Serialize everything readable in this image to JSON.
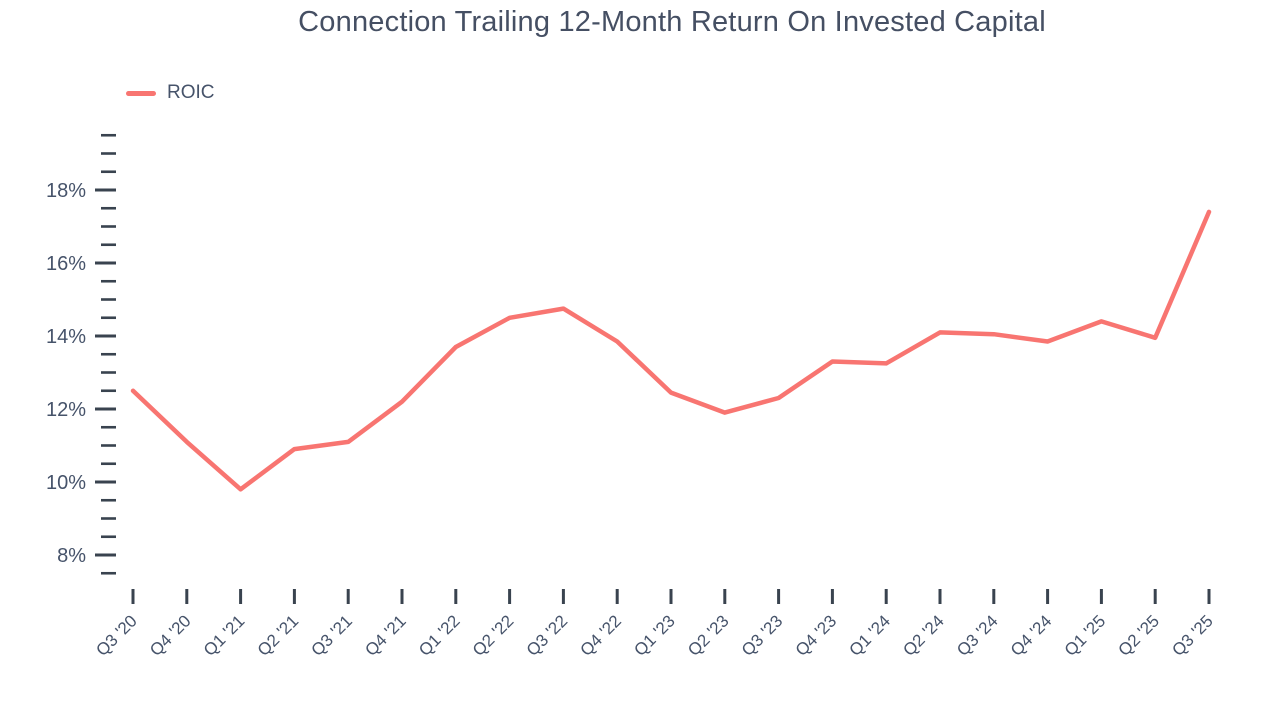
{
  "chart_data": {
    "type": "line",
    "title": "Connection Trailing 12-Month Return On Invested Capital",
    "categories": [
      "Q3 '20",
      "Q4 '20",
      "Q1 '21",
      "Q2 '21",
      "Q3 '21",
      "Q4 '21",
      "Q1 '22",
      "Q2 '22",
      "Q3 '22",
      "Q4 '22",
      "Q1 '23",
      "Q2 '23",
      "Q3 '23",
      "Q4 '23",
      "Q1 '24",
      "Q2 '24",
      "Q3 '24",
      "Q4 '24",
      "Q1 '25",
      "Q2 '25",
      "Q3 '25"
    ],
    "series": [
      {
        "name": "ROIC",
        "color": "#f87571",
        "values": [
          12.5,
          11.1,
          9.8,
          10.9,
          11.1,
          12.2,
          13.7,
          14.5,
          14.75,
          13.85,
          12.45,
          11.9,
          12.3,
          13.3,
          13.25,
          14.1,
          14.05,
          13.85,
          14.4,
          13.95,
          17.4
        ]
      }
    ],
    "xlabel": "",
    "ylabel": "",
    "y_tick_labels": [
      "8%",
      "10%",
      "12%",
      "14%",
      "16%",
      "18%"
    ],
    "y_major_ticks": [
      8,
      10,
      12,
      14,
      16,
      18
    ],
    "y_minor_step": 0.5,
    "ylim": [
      7.5,
      19.5
    ],
    "y_unit": "%",
    "grid": false,
    "legend_position": "top-left",
    "axis_color": "#39434f",
    "label_color": "#46536a"
  }
}
